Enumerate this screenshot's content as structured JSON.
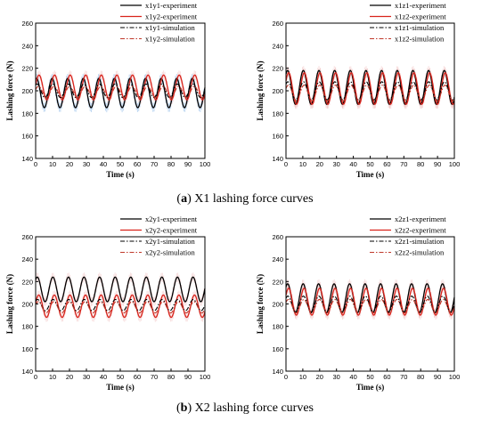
{
  "captions": {
    "a_letter": "a",
    "a_text": "X1 lashing force curves",
    "b_letter": "b",
    "b_text": "X2 lashing force curves"
  },
  "colors": {
    "experiment_black": "#000000",
    "experiment_red": "#d9231b",
    "simulation_black": "#000000",
    "simulation_red": "#c0392b",
    "band_blue": "#4a90d9",
    "band_red": "#e8a0a0"
  },
  "chart_data": [
    {
      "type": "line",
      "panel": "X1-y",
      "xlabel": "Time (s)",
      "ylabel": "Lashing force (N)",
      "xlim": [
        0,
        100
      ],
      "ylim": [
        140,
        260
      ],
      "xticks": [
        0,
        10,
        20,
        30,
        40,
        50,
        60,
        70,
        80,
        90,
        100
      ],
      "yticks": [
        140,
        160,
        180,
        200,
        220,
        240,
        260
      ],
      "legend_position": "top-right",
      "series": [
        {
          "name": "x1y1-experiment",
          "style": "solid",
          "color": "#000000",
          "mean": 198,
          "amplitude": 13,
          "period": 9.2,
          "phase": 1.2,
          "band_color": "#4a90d9"
        },
        {
          "name": "x1y2-experiment",
          "style": "solid",
          "color": "#d9231b",
          "mean": 203,
          "amplitude": 11,
          "period": 9.2,
          "phase": 0.2,
          "band_color": "#e8a0a0"
        },
        {
          "name": "x1y1-simulation",
          "style": "dashdot",
          "color": "#000000",
          "mean": 200,
          "amplitude": 6,
          "period": 9.2,
          "phase": 1.0
        },
        {
          "name": "x1y2-simulation",
          "style": "dashdot",
          "color": "#c0392b",
          "mean": 199,
          "amplitude": 5,
          "period": 9.2,
          "phase": 0.4
        }
      ]
    },
    {
      "type": "line",
      "panel": "X1-z",
      "xlabel": "Time (s)",
      "ylabel": "Lashing force (N)",
      "xlim": [
        0,
        100
      ],
      "ylim": [
        140,
        260
      ],
      "xticks": [
        0,
        10,
        20,
        30,
        40,
        50,
        60,
        70,
        80,
        90,
        100
      ],
      "yticks": [
        140,
        160,
        180,
        200,
        220,
        240,
        260
      ],
      "legend_position": "top-right",
      "series": [
        {
          "name": "x1z1-experiment",
          "style": "solid",
          "color": "#000000",
          "mean": 203,
          "amplitude": 15,
          "period": 9.3,
          "phase": 0.9,
          "band_color": "#e8a0a0"
        },
        {
          "name": "x1z2-experiment",
          "style": "solid",
          "color": "#d9231b",
          "mean": 202,
          "amplitude": 14,
          "period": 9.3,
          "phase": 0.5,
          "band_color": "#e8a0a0"
        },
        {
          "name": "x1z1-simulation",
          "style": "dashdot",
          "color": "#000000",
          "mean": 200,
          "amplitude": 8,
          "period": 9.3,
          "phase": 0.8
        },
        {
          "name": "x1z2-simulation",
          "style": "dashdot",
          "color": "#c0392b",
          "mean": 198,
          "amplitude": 7,
          "period": 9.3,
          "phase": 0.6
        }
      ]
    },
    {
      "type": "line",
      "panel": "X2-y",
      "xlabel": "Time (s)",
      "ylabel": "Lashing force (N)",
      "xlim": [
        0,
        100
      ],
      "ylim": [
        140,
        260
      ],
      "xticks": [
        0,
        10,
        20,
        30,
        40,
        50,
        60,
        70,
        80,
        90,
        100
      ],
      "yticks": [
        140,
        160,
        180,
        200,
        220,
        240,
        260
      ],
      "legend_position": "top-right",
      "series": [
        {
          "name": "x2y1-experiment",
          "style": "solid",
          "color": "#000000",
          "mean": 213,
          "amplitude": 11,
          "period": 9.2,
          "phase": 0.9,
          "band_color": "#e8a0a0"
        },
        {
          "name": "x2y2-experiment",
          "style": "solid",
          "color": "#d9231b",
          "mean": 198,
          "amplitude": 10,
          "period": 9.2,
          "phase": 0.3,
          "band_color": "#e8a0a0"
        },
        {
          "name": "x2y1-simulation",
          "style": "dashdot",
          "color": "#000000",
          "mean": 199,
          "amplitude": 5,
          "period": 9.2,
          "phase": 0.8
        },
        {
          "name": "x2y2-simulation",
          "style": "dashdot",
          "color": "#c0392b",
          "mean": 197,
          "amplitude": 5,
          "period": 9.2,
          "phase": 0.5
        }
      ]
    },
    {
      "type": "line",
      "panel": "X2-z",
      "xlabel": "Time (s)",
      "ylabel": "Lashing force (N)",
      "xlim": [
        0,
        100
      ],
      "ylim": [
        140,
        260
      ],
      "xticks": [
        0,
        10,
        20,
        30,
        40,
        50,
        60,
        70,
        80,
        90,
        100
      ],
      "yticks": [
        140,
        160,
        180,
        200,
        220,
        240,
        260
      ],
      "legend_position": "top-right",
      "series": [
        {
          "name": "x2z1-experiment",
          "style": "solid",
          "color": "#000000",
          "mean": 205,
          "amplitude": 13,
          "period": 9.2,
          "phase": 0.9,
          "band_color": "#e8a0a0"
        },
        {
          "name": "x2z2-experiment",
          "style": "solid",
          "color": "#d9231b",
          "mean": 202,
          "amplitude": 12,
          "period": 9.2,
          "phase": 0.5,
          "band_color": "#e8a0a0"
        },
        {
          "name": "x2z1-simulation",
          "style": "dashdot",
          "color": "#000000",
          "mean": 200,
          "amplitude": 7,
          "period": 9.2,
          "phase": 0.8
        },
        {
          "name": "x2z2-simulation",
          "style": "dashdot",
          "color": "#c0392b",
          "mean": 198,
          "amplitude": 6,
          "period": 9.2,
          "phase": 0.6
        }
      ]
    }
  ]
}
